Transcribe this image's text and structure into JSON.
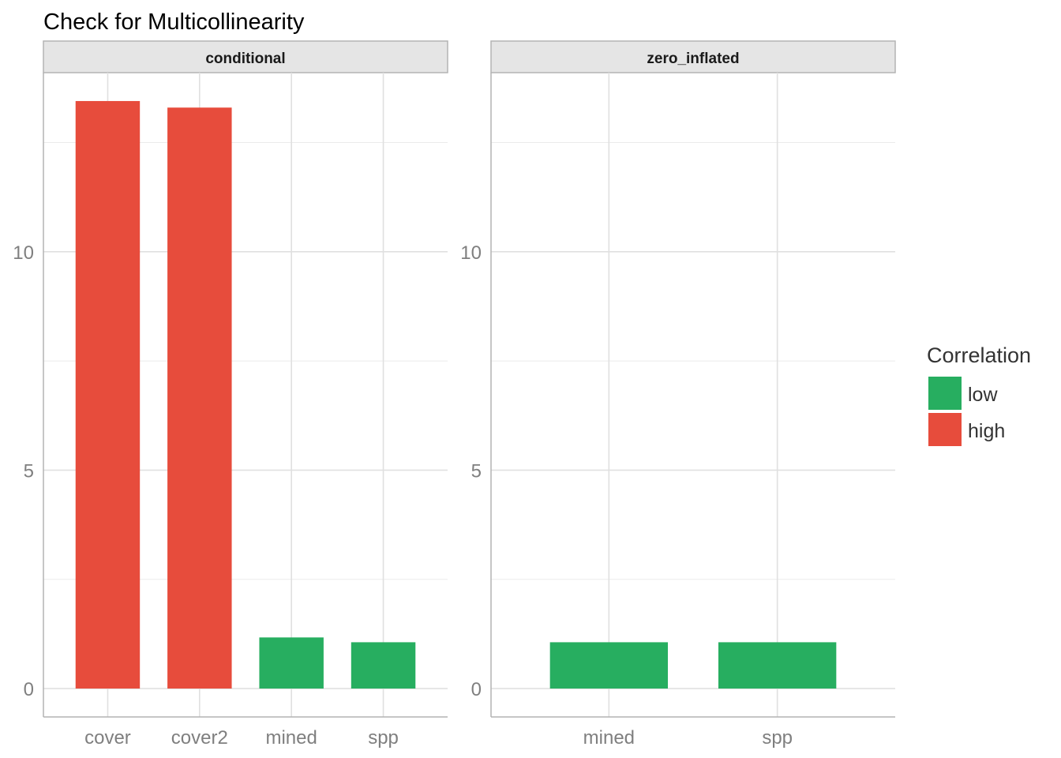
{
  "title": "Check for Multicollinearity",
  "colors": {
    "low": "#27AE60",
    "high": "#E74C3C"
  },
  "legend": {
    "title": "Correlation",
    "items": [
      {
        "label": "low",
        "key": "low"
      },
      {
        "label": "high",
        "key": "high"
      }
    ]
  },
  "chart_data": {
    "type": "bar",
    "title": "Check for Multicollinearity",
    "xlabel": "",
    "ylabel": "",
    "ylim": [
      -0.65,
      14.1
    ],
    "yticks": [
      0,
      5,
      10
    ],
    "grid": true,
    "legend_position": "right",
    "panels": [
      {
        "name": "conditional",
        "categories": [
          "cover",
          "cover2",
          "mined",
          "spp"
        ],
        "values": [
          13.45,
          13.3,
          1.17,
          1.06
        ],
        "correlation": [
          "high",
          "high",
          "low",
          "low"
        ]
      },
      {
        "name": "zero_inflated",
        "categories": [
          "mined",
          "spp"
        ],
        "values": [
          1.06,
          1.06
        ],
        "correlation": [
          "low",
          "low"
        ]
      }
    ]
  }
}
